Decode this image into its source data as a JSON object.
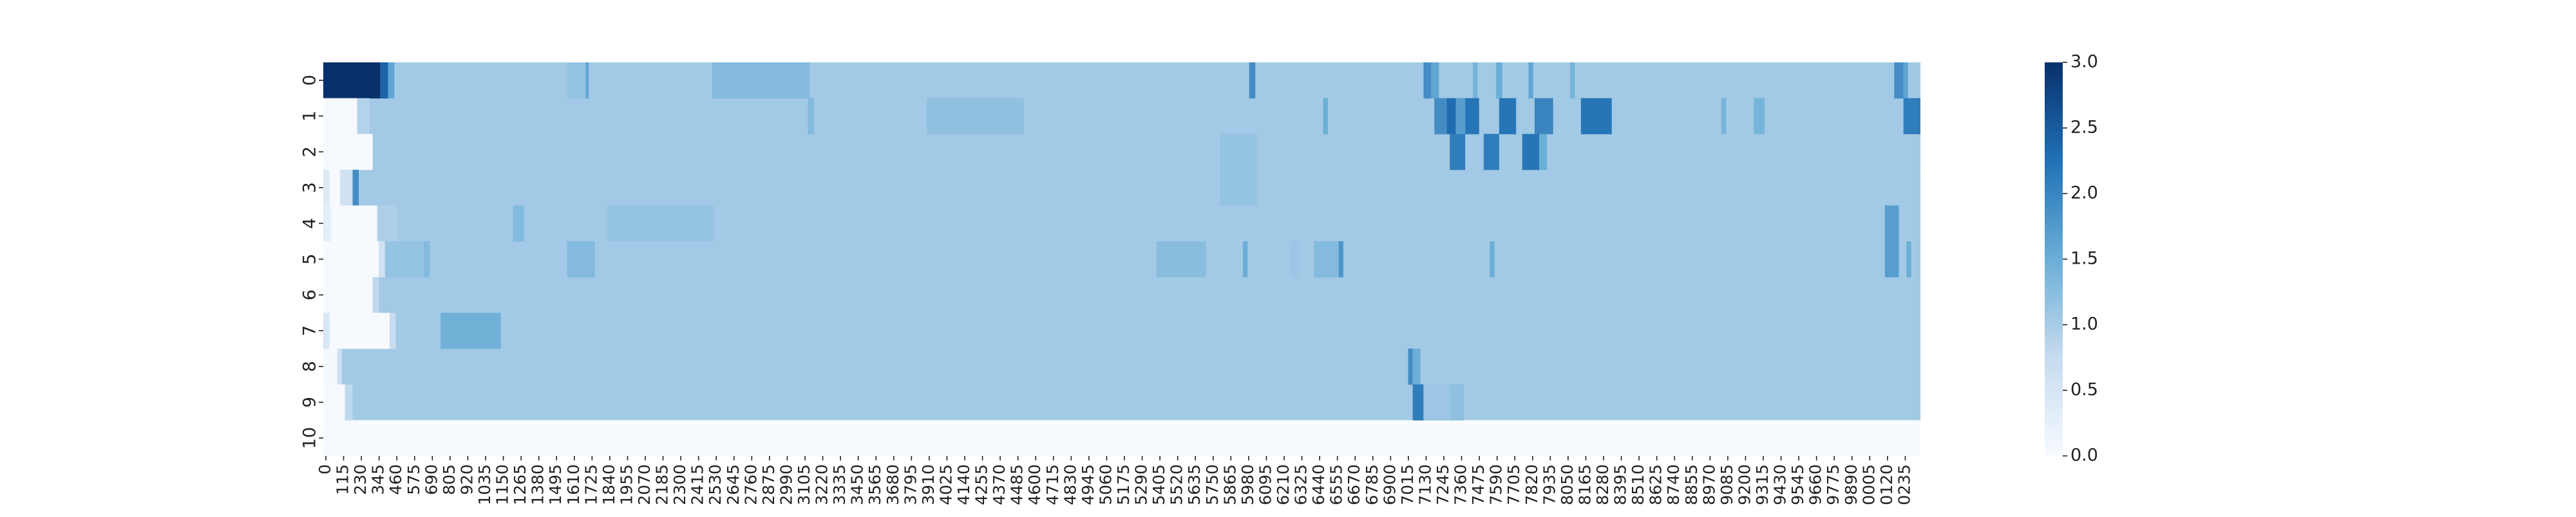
{
  "chart_data": {
    "type": "heatmap",
    "title": "",
    "xlabel": "",
    "ylabel": "",
    "y_categories": [
      "0",
      "1",
      "2",
      "3",
      "4",
      "5",
      "6",
      "7",
      "8",
      "9",
      "10"
    ],
    "x_tick_labels": [
      "0",
      "115",
      "230",
      "345",
      "460",
      "575",
      "690",
      "805",
      "920",
      "1035",
      "1150",
      "1265",
      "1380",
      "1495",
      "1610",
      "1725",
      "1840",
      "1955",
      "2070",
      "2185",
      "2300",
      "2415",
      "2530",
      "2645",
      "2760",
      "2875",
      "2990",
      "3105",
      "3220",
      "3335",
      "3450",
      "3565",
      "3680",
      "3795",
      "3910",
      "4025",
      "4140",
      "4255",
      "4370",
      "4485",
      "4600",
      "4715",
      "4830",
      "4945",
      "5060",
      "5175",
      "5290",
      "5405",
      "5520",
      "5635",
      "5750",
      "5865",
      "5980",
      "6095",
      "6210",
      "6325",
      "6440",
      "6555",
      "6670",
      "6785",
      "6900",
      "7015",
      "7130",
      "7245",
      "7360",
      "7475",
      "7590",
      "7705",
      "7820",
      "7935",
      "8050",
      "8165",
      "8280",
      "8395",
      "8510",
      "8625",
      "8740",
      "8855",
      "8970",
      "9085",
      "9200",
      "9315",
      "9430",
      "9545",
      "9660",
      "9775",
      "9890",
      "0005",
      "0120",
      "0235"
    ],
    "x_range": [
      0,
      10350
    ],
    "colorbar": {
      "min": 0,
      "max": 3,
      "ticks": [
        "0.0",
        "0.5",
        "1.0",
        "1.5",
        "2.0",
        "2.5",
        "3.0"
      ],
      "colors": [
        "#f7fbff",
        "#c6dbef",
        "#6baed6",
        "#2171b5",
        "#08306b"
      ]
    },
    "row_base_values": [
      1.05,
      1.05,
      1.05,
      1.05,
      1.05,
      1.05,
      1.05,
      1.05,
      1.05,
      1.05,
      0.0
    ],
    "segments": [
      {
        "row": 0,
        "x0": 0,
        "x1": 370,
        "value": 3.0
      },
      {
        "row": 0,
        "x0": 370,
        "x1": 420,
        "value": 2.4
      },
      {
        "row": 0,
        "x0": 420,
        "x1": 460,
        "value": 1.6
      },
      {
        "row": 0,
        "x0": 1580,
        "x1": 1700,
        "value": 1.15
      },
      {
        "row": 0,
        "x0": 1700,
        "x1": 1720,
        "value": 1.6
      },
      {
        "row": 0,
        "x0": 2520,
        "x1": 3150,
        "value": 1.3
      },
      {
        "row": 0,
        "x0": 6000,
        "x1": 6040,
        "value": 1.9
      },
      {
        "row": 0,
        "x0": 7130,
        "x1": 7180,
        "value": 1.9
      },
      {
        "row": 0,
        "x0": 7180,
        "x1": 7230,
        "value": 1.6
      },
      {
        "row": 0,
        "x0": 7450,
        "x1": 7480,
        "value": 1.4
      },
      {
        "row": 0,
        "x0": 7600,
        "x1": 7640,
        "value": 1.5
      },
      {
        "row": 0,
        "x0": 7810,
        "x1": 7840,
        "value": 1.6
      },
      {
        "row": 0,
        "x0": 8080,
        "x1": 8110,
        "value": 1.4
      },
      {
        "row": 0,
        "x0": 10180,
        "x1": 10240,
        "value": 1.9
      },
      {
        "row": 0,
        "x0": 10240,
        "x1": 10270,
        "value": 1.6
      },
      {
        "row": 1,
        "x0": 0,
        "x1": 220,
        "value": 0.02
      },
      {
        "row": 1,
        "x0": 220,
        "x1": 300,
        "value": 0.9
      },
      {
        "row": 1,
        "x0": 3140,
        "x1": 3180,
        "value": 1.3
      },
      {
        "row": 1,
        "x0": 3910,
        "x1": 4540,
        "value": 1.2
      },
      {
        "row": 1,
        "x0": 6480,
        "x1": 6510,
        "value": 1.5
      },
      {
        "row": 1,
        "x0": 7200,
        "x1": 7280,
        "value": 1.9
      },
      {
        "row": 1,
        "x0": 7280,
        "x1": 7340,
        "value": 2.3
      },
      {
        "row": 1,
        "x0": 7340,
        "x1": 7400,
        "value": 1.7
      },
      {
        "row": 1,
        "x0": 7400,
        "x1": 7490,
        "value": 2.2
      },
      {
        "row": 1,
        "x0": 7620,
        "x1": 7730,
        "value": 2.2
      },
      {
        "row": 1,
        "x0": 7850,
        "x1": 7970,
        "value": 2.0
      },
      {
        "row": 1,
        "x0": 8150,
        "x1": 8350,
        "value": 2.2
      },
      {
        "row": 1,
        "x0": 9060,
        "x1": 9090,
        "value": 1.4
      },
      {
        "row": 1,
        "x0": 9270,
        "x1": 9340,
        "value": 1.4
      },
      {
        "row": 1,
        "x0": 10240,
        "x1": 10350,
        "value": 2.1
      },
      {
        "row": 2,
        "x0": 0,
        "x1": 320,
        "value": 0.02
      },
      {
        "row": 2,
        "x0": 7300,
        "x1": 7400,
        "value": 2.1
      },
      {
        "row": 2,
        "x0": 7520,
        "x1": 7620,
        "value": 2.1
      },
      {
        "row": 2,
        "x0": 7770,
        "x1": 7880,
        "value": 2.2
      },
      {
        "row": 2,
        "x0": 7880,
        "x1": 7930,
        "value": 1.5
      },
      {
        "row": 2,
        "x0": 5810,
        "x1": 6050,
        "value": 1.15
      },
      {
        "row": 3,
        "x0": 0,
        "x1": 40,
        "value": 0.4
      },
      {
        "row": 3,
        "x0": 40,
        "x1": 110,
        "value": 0.02
      },
      {
        "row": 3,
        "x0": 110,
        "x1": 190,
        "value": 0.6
      },
      {
        "row": 3,
        "x0": 190,
        "x1": 230,
        "value": 1.9
      },
      {
        "row": 3,
        "x0": 5810,
        "x1": 6050,
        "value": 1.15
      },
      {
        "row": 4,
        "x0": 0,
        "x1": 50,
        "value": 0.3
      },
      {
        "row": 4,
        "x0": 50,
        "x1": 350,
        "value": 0.02
      },
      {
        "row": 4,
        "x0": 350,
        "x1": 480,
        "value": 0.95
      },
      {
        "row": 4,
        "x0": 1230,
        "x1": 1300,
        "value": 1.3
      },
      {
        "row": 4,
        "x0": 1840,
        "x1": 2530,
        "value": 1.15
      },
      {
        "row": 4,
        "x0": 10120,
        "x1": 10210,
        "value": 1.7
      },
      {
        "row": 5,
        "x0": 0,
        "x1": 360,
        "value": 0.02
      },
      {
        "row": 5,
        "x0": 360,
        "x1": 400,
        "value": 0.6
      },
      {
        "row": 5,
        "x0": 400,
        "x1": 650,
        "value": 1.15
      },
      {
        "row": 5,
        "x0": 650,
        "x1": 690,
        "value": 1.3
      },
      {
        "row": 5,
        "x0": 1580,
        "x1": 1760,
        "value": 1.3
      },
      {
        "row": 5,
        "x0": 5400,
        "x1": 5720,
        "value": 1.25
      },
      {
        "row": 5,
        "x0": 5960,
        "x1": 5990,
        "value": 1.5
      },
      {
        "row": 5,
        "x0": 6270,
        "x1": 6330,
        "value": 1.1
      },
      {
        "row": 5,
        "x0": 6420,
        "x1": 6580,
        "value": 1.3
      },
      {
        "row": 5,
        "x0": 6580,
        "x1": 6610,
        "value": 1.8
      },
      {
        "row": 5,
        "x0": 7560,
        "x1": 7590,
        "value": 1.5
      },
      {
        "row": 5,
        "x0": 10120,
        "x1": 10210,
        "value": 1.7
      },
      {
        "row": 5,
        "x0": 10260,
        "x1": 10290,
        "value": 1.5
      },
      {
        "row": 6,
        "x0": 0,
        "x1": 320,
        "value": 0.02
      },
      {
        "row": 6,
        "x0": 320,
        "x1": 360,
        "value": 0.8
      },
      {
        "row": 7,
        "x0": 0,
        "x1": 40,
        "value": 0.5
      },
      {
        "row": 7,
        "x0": 40,
        "x1": 430,
        "value": 0.02
      },
      {
        "row": 7,
        "x0": 430,
        "x1": 470,
        "value": 0.7
      },
      {
        "row": 7,
        "x0": 760,
        "x1": 1150,
        "value": 1.45
      },
      {
        "row": 8,
        "x0": 0,
        "x1": 90,
        "value": 0.05
      },
      {
        "row": 8,
        "x0": 90,
        "x1": 120,
        "value": 0.6
      },
      {
        "row": 8,
        "x0": 7030,
        "x1": 7060,
        "value": 1.9
      },
      {
        "row": 8,
        "x0": 7060,
        "x1": 7110,
        "value": 1.5
      },
      {
        "row": 9,
        "x0": 0,
        "x1": 140,
        "value": 0.02
      },
      {
        "row": 9,
        "x0": 140,
        "x1": 190,
        "value": 0.8
      },
      {
        "row": 9,
        "x0": 7060,
        "x1": 7130,
        "value": 2.1
      },
      {
        "row": 9,
        "x0": 7130,
        "x1": 7300,
        "value": 1.1
      },
      {
        "row": 9,
        "x0": 7300,
        "x1": 7390,
        "value": 1.2
      }
    ]
  }
}
